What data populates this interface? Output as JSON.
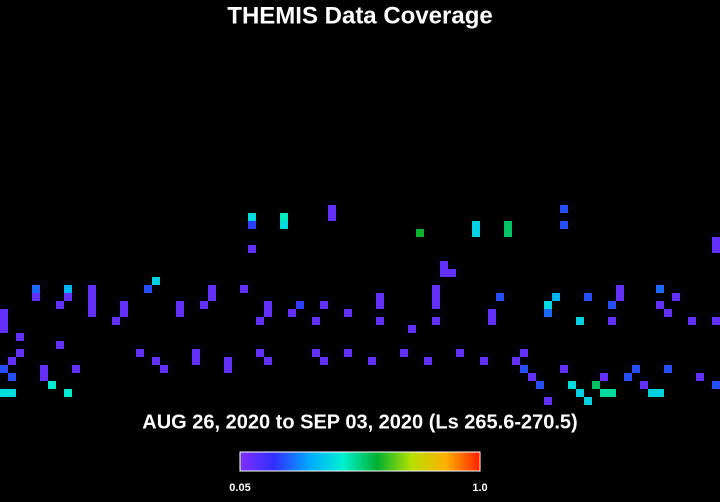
{
  "chart_data": {
    "type": "heatmap",
    "title": "THEMIS Data Coverage",
    "subtitle": "AUG 26, 2020 to SEP 03, 2020 (Ls 265.6-270.5)",
    "x": [
      41,
      41,
      31,
      31,
      31,
      35,
      35,
      70,
      70,
      59,
      59,
      63,
      63,
      52,
      89,
      89,
      55,
      55,
      56,
      19,
      18,
      0,
      0,
      0,
      4,
      4,
      8,
      8,
      7,
      11,
      11,
      11,
      11,
      15,
      15,
      14,
      22,
      22,
      26,
      26,
      25,
      30,
      33,
      33,
      32,
      37,
      36,
      40,
      39,
      43,
      47,
      47,
      47,
      51,
      54,
      54,
      54,
      54,
      61,
      61,
      62,
      69,
      68,
      68,
      73,
      72,
      77,
      77,
      76,
      76,
      82,
      82,
      84,
      83,
      86,
      89,
      2,
      2,
      7,
      1,
      0,
      1,
      0,
      1,
      5,
      5,
      6,
      8,
      9,
      17,
      19,
      20,
      24,
      24,
      28,
      28,
      32,
      33,
      39,
      40,
      43,
      46,
      50,
      53,
      57,
      60,
      64,
      65,
      65,
      66,
      67,
      68,
      70,
      71,
      72,
      73,
      74,
      75,
      75,
      76,
      79,
      78,
      80,
      81,
      82,
      83,
      87,
      89
    ],
    "y": [
      0,
      1,
      1,
      2,
      5,
      1,
      2,
      0,
      2,
      2,
      3,
      2,
      3,
      3,
      4,
      5,
      7,
      8,
      8,
      9,
      10,
      13,
      14,
      15,
      10,
      11,
      10,
      11,
      12,
      10,
      11,
      12,
      13,
      12,
      13,
      14,
      12,
      13,
      10,
      11,
      12,
      10,
      12,
      13,
      14,
      12,
      13,
      12,
      14,
      13,
      11,
      12,
      14,
      15,
      10,
      11,
      12,
      14,
      13,
      14,
      11,
      11,
      12,
      13,
      11,
      14,
      10,
      11,
      12,
      14,
      10,
      12,
      11,
      13,
      14,
      14,
      16,
      18,
      17,
      19,
      20,
      21,
      23,
      23,
      20,
      21,
      22,
      23,
      20,
      18,
      19,
      20,
      18,
      19,
      19,
      20,
      18,
      19,
      18,
      19,
      18,
      19,
      18,
      19,
      18,
      19,
      19,
      18,
      20,
      21,
      22,
      24,
      20,
      22,
      23,
      24,
      22,
      21,
      23,
      23,
      20,
      21,
      22,
      23,
      23,
      20,
      21,
      22
    ],
    "values": [
      0.1,
      0.1,
      0.42,
      0.2,
      0.1,
      0.47,
      0.42,
      0.22,
      0.22,
      0.4,
      0.4,
      0.55,
      0.55,
      0.6,
      0.1,
      0.1,
      0.1,
      0.1,
      0.1,
      0.4,
      0.22,
      0.1,
      0.1,
      0.1,
      0.25,
      0.1,
      0.35,
      0.1,
      0.1,
      0.1,
      0.1,
      0.1,
      0.1,
      0.1,
      0.1,
      0.1,
      0.1,
      0.1,
      0.1,
      0.1,
      0.1,
      0.1,
      0.1,
      0.1,
      0.1,
      0.2,
      0.1,
      0.1,
      0.1,
      0.1,
      0.1,
      0.1,
      0.1,
      0.1,
      0.1,
      0.1,
      0.1,
      0.1,
      0.1,
      0.1,
      0.22,
      0.35,
      0.42,
      0.25,
      0.22,
      0.4,
      0.1,
      0.1,
      0.22,
      0.1,
      0.25,
      0.1,
      0.1,
      0.1,
      0.1,
      0.1,
      0.1,
      0.1,
      0.1,
      0.1,
      0.22,
      0.22,
      0.42,
      0.42,
      0.1,
      0.1,
      0.45,
      0.45,
      0.1,
      0.1,
      0.1,
      0.1,
      0.1,
      0.1,
      0.1,
      0.1,
      0.1,
      0.1,
      0.1,
      0.1,
      0.1,
      0.1,
      0.1,
      0.1,
      0.1,
      0.1,
      0.1,
      0.1,
      0.22,
      0.1,
      0.22,
      0.1,
      0.1,
      0.42,
      0.4,
      0.4,
      0.55,
      0.1,
      0.5,
      0.5,
      0.22,
      0.22,
      0.1,
      0.4,
      0.4,
      0.22,
      0.1,
      0.22
    ],
    "colorscale": [
      "#7f2fff",
      "#3030ff",
      "#00a8ff",
      "#00f0d0",
      "#00b030",
      "#b8e000",
      "#ffb000",
      "#ff2000"
    ],
    "clim": [
      0.05,
      1
    ],
    "cticks": [
      0.05,
      {
        "value": 1,
        "label": "1.0"
      }
    ]
  }
}
